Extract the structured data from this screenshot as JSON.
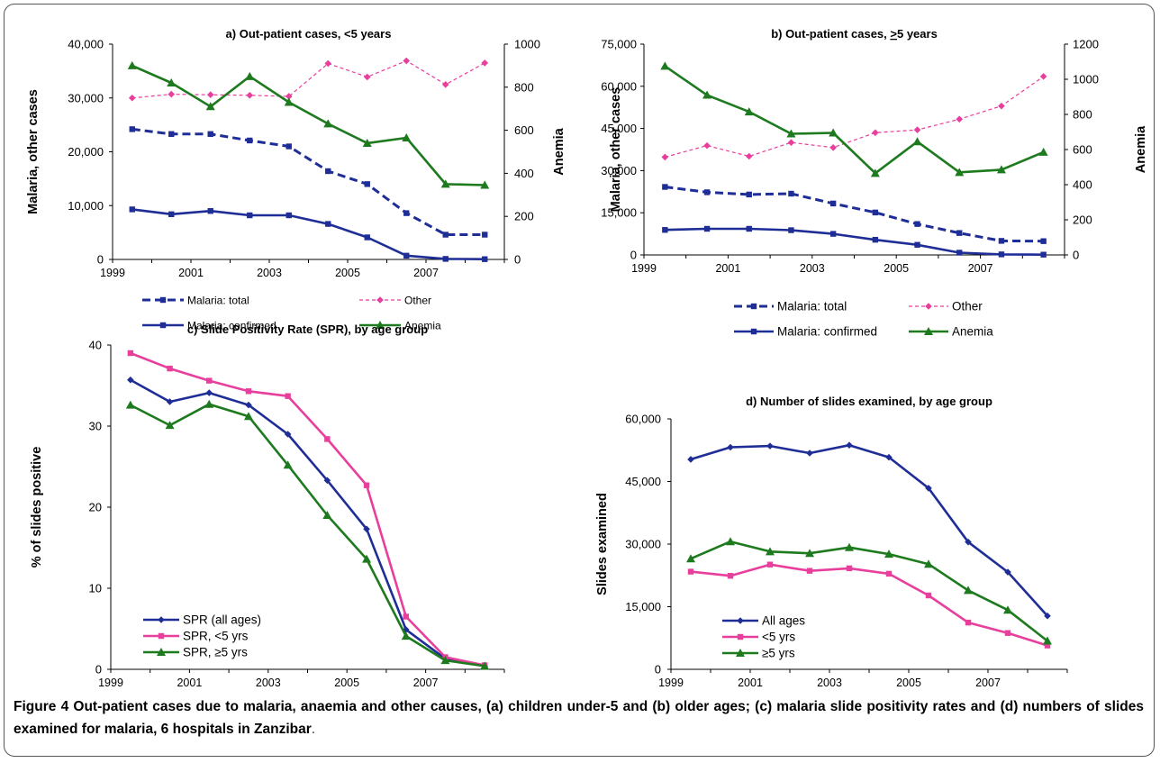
{
  "figure": {
    "caption_label": "Figure 4",
    "caption_text": "Out-patient cases due to malaria, anaemia and other causes, (a) children under-5 and (b) older ages; (c) malaria slide positivity rates and (d) numbers of slides examined for malaria, 6 hospitals in Zanzibar",
    "caption_end": ".",
    "colors": {
      "navy": "#1f2e96",
      "magenta": "#e83e9c",
      "green": "#1e7a1e"
    }
  },
  "chart_data": [
    {
      "id": "a",
      "type": "line",
      "title": "a) Out-patient cases, <5 years",
      "ylabel": "Malaria, other cases",
      "y2label": "Anemia",
      "x": [
        1999,
        2000,
        2001,
        2002,
        2003,
        2004,
        2005,
        2006,
        2007,
        2008
      ],
      "xticks": [
        "1999",
        "2001",
        "2003",
        "2005",
        "2007"
      ],
      "ylim": [
        0,
        40000
      ],
      "yticks": [
        "0",
        "10,000",
        "20,000",
        "30,000",
        "40,000"
      ],
      "y2lim": [
        0,
        1000
      ],
      "y2ticks": [
        "0",
        "200",
        "400",
        "600",
        "800",
        "1000"
      ],
      "series": [
        {
          "name": "Malaria: total",
          "axis": "left",
          "style": "dashed",
          "marker": "square",
          "color": "#1f2e96",
          "values": [
            24200,
            23300,
            23300,
            22100,
            21000,
            16400,
            14000,
            8600,
            4600,
            4600
          ]
        },
        {
          "name": "Other",
          "axis": "left",
          "style": "dashed-thin",
          "marker": "diamond",
          "color": "#e83e9c",
          "values": [
            30000,
            30700,
            30600,
            30500,
            30300,
            36400,
            33900,
            36900,
            32500,
            36500
          ]
        },
        {
          "name": "Malaria: confirmed",
          "axis": "left",
          "style": "solid",
          "marker": "square",
          "color": "#1f2e96",
          "values": [
            9300,
            8400,
            9000,
            8200,
            8200,
            6600,
            4100,
            700,
            100,
            50
          ]
        },
        {
          "name": "Anemia",
          "axis": "right",
          "style": "solid",
          "marker": "triangle",
          "color": "#1e7a1e",
          "values": [
            900,
            820,
            710,
            850,
            730,
            630,
            540,
            565,
            350,
            345
          ]
        }
      ],
      "legend": "bottom"
    },
    {
      "id": "b",
      "type": "line",
      "title": "b) Out-patient cases, >5 years",
      "title_prefix": "b) Out-patient cases, ",
      "title_symbol": ">",
      "title_suffix": "5 years",
      "ylabel": "Malaria, other cases",
      "y2label": "Anemia",
      "x": [
        1999,
        2000,
        2001,
        2002,
        2003,
        2004,
        2005,
        2006,
        2007,
        2008
      ],
      "xticks": [
        "1999",
        "2001",
        "2003",
        "2005",
        "2007"
      ],
      "ylim": [
        0,
        75000
      ],
      "yticks": [
        "0",
        "15,000",
        "30,000",
        "45,000",
        "60,000",
        "75,000"
      ],
      "y2lim": [
        0,
        1200
      ],
      "y2ticks": [
        "0",
        "200",
        "400",
        "600",
        "800",
        "1000",
        "1200"
      ],
      "series": [
        {
          "name": "Malaria: total",
          "axis": "left",
          "style": "dashed",
          "marker": "square",
          "color": "#1f2e96",
          "values": [
            24200,
            22300,
            21500,
            21800,
            18300,
            15100,
            11000,
            7800,
            5000,
            4900
          ]
        },
        {
          "name": "Other",
          "axis": "left",
          "style": "dashed-thin",
          "marker": "diamond",
          "color": "#e83e9c",
          "values": [
            34800,
            38900,
            35100,
            40000,
            38200,
            43500,
            44500,
            48300,
            53000,
            63500
          ]
        },
        {
          "name": "Malaria: confirmed",
          "axis": "left",
          "style": "solid",
          "marker": "square",
          "color": "#1f2e96",
          "values": [
            8900,
            9300,
            9300,
            8800,
            7500,
            5400,
            3600,
            800,
            200,
            100
          ]
        },
        {
          "name": "Anemia",
          "axis": "right",
          "style": "solid",
          "marker": "triangle",
          "color": "#1e7a1e",
          "values": [
            1075,
            910,
            815,
            690,
            695,
            465,
            645,
            470,
            485,
            585
          ]
        }
      ],
      "legend": "bottom"
    },
    {
      "id": "c",
      "type": "line",
      "title": "c) Slide Positivity Rate (SPR), by age group",
      "ylabel": "% of slides positive",
      "x": [
        1999,
        2000,
        2001,
        2002,
        2003,
        2004,
        2005,
        2006,
        2007,
        2008
      ],
      "xticks": [
        "1999",
        "2001",
        "2003",
        "2005",
        "2007"
      ],
      "ylim": [
        0,
        40
      ],
      "yticks": [
        "0",
        "10",
        "20",
        "30",
        "40"
      ],
      "series": [
        {
          "name": "SPR (all ages)",
          "style": "solid",
          "marker": "diamond",
          "color": "#1f2e96",
          "values": [
            35.7,
            33.0,
            34.1,
            32.6,
            29.0,
            23.3,
            17.3,
            4.9,
            1.3,
            0.4
          ]
        },
        {
          "name": "SPR, <5 yrs",
          "style": "solid",
          "marker": "square",
          "color": "#e83e9c",
          "values": [
            39.0,
            37.1,
            35.6,
            34.3,
            33.7,
            28.4,
            22.7,
            6.5,
            1.5,
            0.5
          ]
        },
        {
          "name": "SPR, ≥5 yrs",
          "style": "solid",
          "marker": "triangle",
          "color": "#1e7a1e",
          "values": [
            32.6,
            30.1,
            32.7,
            31.2,
            25.2,
            19.0,
            13.6,
            4.1,
            1.1,
            0.4
          ]
        }
      ],
      "legend": "bottom-left"
    },
    {
      "id": "d",
      "type": "line",
      "title": "d) Number of slides examined, by age group",
      "ylabel": "Slides examined",
      "x": [
        1999,
        2000,
        2001,
        2002,
        2003,
        2004,
        2005,
        2006,
        2007,
        2008
      ],
      "xticks": [
        "1999",
        "2001",
        "2003",
        "2005",
        "2007"
      ],
      "ylim": [
        0,
        60000
      ],
      "yticks": [
        "0",
        "15,000",
        "30,000",
        "45,000",
        "60,000"
      ],
      "series": [
        {
          "name": "All ages",
          "style": "solid",
          "marker": "diamond",
          "color": "#1f2e96",
          "values": [
            50300,
            53200,
            53500,
            51800,
            53700,
            50800,
            43400,
            30500,
            23300,
            12800
          ]
        },
        {
          "name": "<5 yrs",
          "style": "solid",
          "marker": "square",
          "color": "#e83e9c",
          "values": [
            23400,
            22400,
            25100,
            23600,
            24200,
            22900,
            17700,
            11200,
            8700,
            5700
          ]
        },
        {
          "name": "≥5 yrs",
          "style": "solid",
          "marker": "triangle",
          "color": "#1e7a1e",
          "values": [
            26500,
            30600,
            28200,
            27800,
            29200,
            27600,
            25200,
            18900,
            14200,
            6800
          ]
        }
      ],
      "legend": "bottom-left"
    }
  ]
}
